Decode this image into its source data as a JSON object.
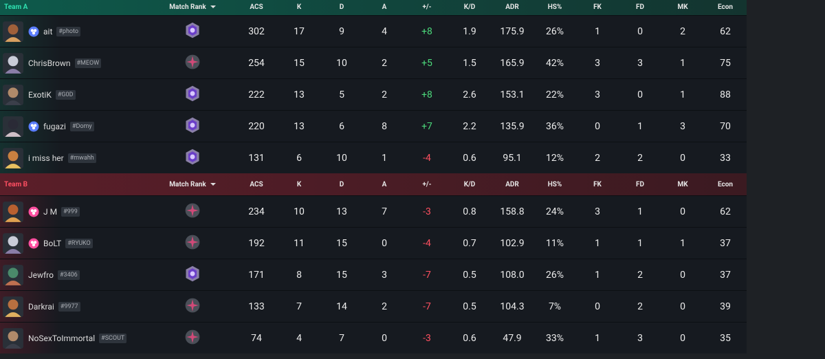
{
  "columns": [
    "Match Rank",
    "ACS",
    "K",
    "D",
    "A",
    "+/-",
    "K/D",
    "ADR",
    "HS%",
    "FK",
    "FD",
    "MK",
    "Econ"
  ],
  "teams": [
    {
      "name": "Team A",
      "players": [
        {
          "name": "ait",
          "tag": "#photo",
          "stats": [
            "302",
            "17",
            "9",
            "4",
            "+8",
            "1.9",
            "175.9",
            "26%",
            "1",
            "0",
            "2",
            "62"
          ]
        },
        {
          "name": "ChrisBrown",
          "tag": "#MEOW",
          "stats": [
            "254",
            "15",
            "10",
            "2",
            "+5",
            "1.5",
            "165.9",
            "42%",
            "3",
            "3",
            "1",
            "75"
          ]
        },
        {
          "name": "ExotiK",
          "tag": "#G0D",
          "stats": [
            "222",
            "13",
            "5",
            "2",
            "+8",
            "2.6",
            "153.1",
            "22%",
            "3",
            "0",
            "1",
            "88"
          ]
        },
        {
          "name": "fugazi",
          "tag": "#Domy",
          "stats": [
            "220",
            "13",
            "6",
            "8",
            "+7",
            "2.2",
            "135.9",
            "36%",
            "0",
            "1",
            "3",
            "70"
          ]
        },
        {
          "name": "i miss her",
          "tag": "#mwahh",
          "stats": [
            "131",
            "6",
            "10",
            "1",
            "-4",
            "0.6",
            "95.1",
            "12%",
            "2",
            "2",
            "0",
            "33"
          ]
        }
      ]
    },
    {
      "name": "Team B",
      "players": [
        {
          "name": "J M",
          "tag": "#999",
          "stats": [
            "234",
            "10",
            "13",
            "7",
            "-3",
            "0.8",
            "158.8",
            "24%",
            "3",
            "1",
            "0",
            "62"
          ]
        },
        {
          "name": "BoLT",
          "tag": "#RYUKO",
          "stats": [
            "192",
            "11",
            "15",
            "0",
            "-4",
            "0.7",
            "102.9",
            "11%",
            "1",
            "1",
            "1",
            "37"
          ]
        },
        {
          "name": "Jewfro",
          "tag": "#3406",
          "stats": [
            "171",
            "8",
            "15",
            "3",
            "-7",
            "0.5",
            "108.0",
            "26%",
            "1",
            "2",
            "0",
            "37"
          ]
        },
        {
          "name": "Darkrai",
          "tag": "#9977",
          "stats": [
            "133",
            "7",
            "14",
            "2",
            "-7",
            "0.5",
            "104.3",
            "7%",
            "0",
            "2",
            "0",
            "39"
          ]
        },
        {
          "name": "NoSexToImmortal",
          "tag": "#SCOUT",
          "stats": [
            "74",
            "4",
            "7",
            "0",
            "-3",
            "0.6",
            "47.9",
            "33%",
            "1",
            "3",
            "0",
            "35"
          ]
        }
      ]
    }
  ]
}
